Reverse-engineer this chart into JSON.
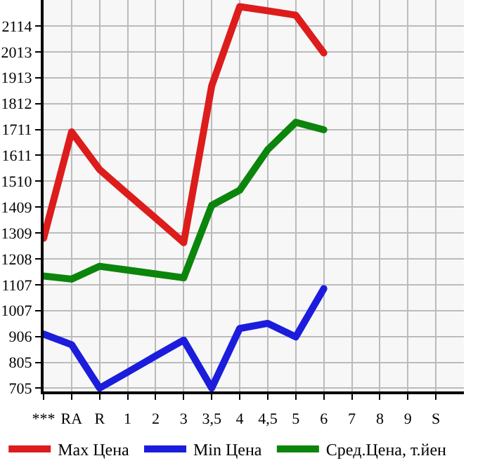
{
  "chart_data": {
    "type": "line",
    "categories": [
      "***",
      "RA",
      "R",
      "1",
      "2",
      "3",
      "3,5",
      "4",
      "4,5",
      "5",
      "6",
      "7",
      "8",
      "9",
      "S"
    ],
    "series": [
      {
        "name": "Max Цена",
        "color": "#dd1c1c",
        "values": [
          1288,
          1702,
          1555,
          1460,
          1366,
          1271,
          1881,
          2189,
          2173,
          2156,
          2009,
          null,
          null,
          null,
          null
        ]
      },
      {
        "name": "Min Цена",
        "color": "#1c1cdd",
        "values": [
          915,
          874,
          705,
          767,
          830,
          892,
          705,
          937,
          957,
          904,
          1092,
          null,
          null,
          null,
          null
        ]
      },
      {
        "name": "Сред.Цена, т.йен",
        "color": "#0b850b",
        "values": [
          1141,
          1129,
          1179,
          1164,
          1149,
          1134,
          1416,
          1475,
          1633,
          1739,
          1710,
          null,
          null,
          null,
          null
        ]
      }
    ],
    "ylim": [
      692,
      2215
    ],
    "yticks": [
      705,
      805,
      906,
      1007,
      1107,
      1208,
      1309,
      1409,
      1510,
      1611,
      1711,
      1812,
      1913,
      2013,
      2114
    ],
    "grid": true,
    "legend": "bottom",
    "marker": "none",
    "line_style": "solid"
  }
}
